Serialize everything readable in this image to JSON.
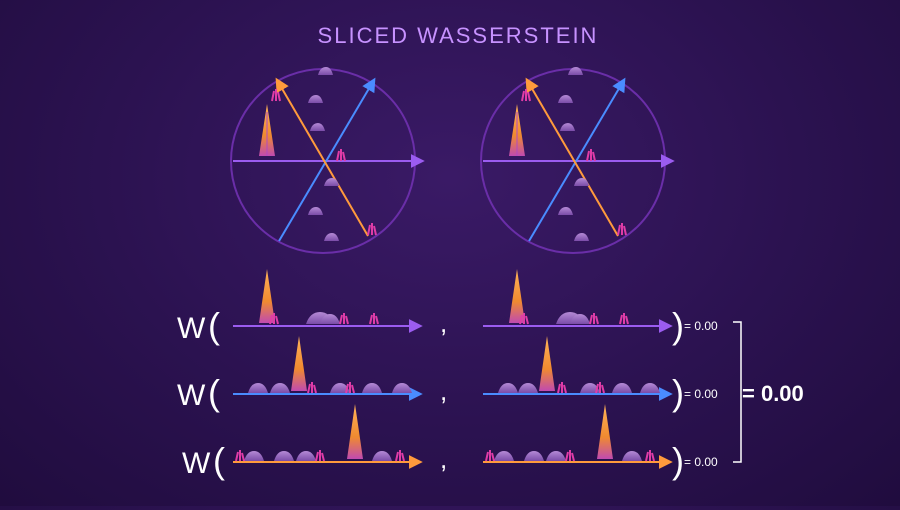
{
  "title": "SLICED WASSERSTEIN",
  "distance_symbol": "W",
  "open_paren": "(",
  "close_paren": ")",
  "comma": ",",
  "rows": [
    {
      "result": "= 0.00"
    },
    {
      "result": "= 0.00"
    },
    {
      "result": "= 0.00"
    }
  ],
  "total": "= 0.00",
  "colors": {
    "background": "#2b1250",
    "circle": "#6a2ea8",
    "axis_purple": "#9b5cf0",
    "axis_blue": "#4a8cff",
    "axis_orange": "#ff9a3c",
    "rock": "#9a6ac0",
    "grass": "#e03ca8",
    "tree": "#f7a04a",
    "title": "#c792ff"
  },
  "icons": [
    "tree-icon",
    "rock-icon",
    "grass-icon",
    "arrow-icon"
  ]
}
